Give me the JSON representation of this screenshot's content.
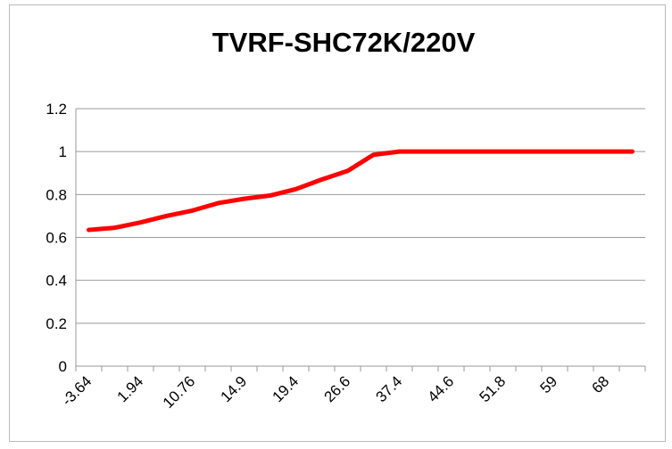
{
  "chart_data": {
    "type": "line",
    "title": "TVRF-SHC72K/220V",
    "categories": [
      "-3.64",
      null,
      "1.94",
      null,
      "10.76",
      null,
      "14.9",
      null,
      "19.4",
      null,
      "26.6",
      null,
      "37.4",
      null,
      "44.6",
      null,
      "51.8",
      null,
      "59",
      null,
      "68",
      null
    ],
    "series": [
      {
        "name": "TVRF-SHC72K/220V",
        "color": "#ff0000",
        "values": [
          0.635,
          0.645,
          0.67,
          0.7,
          0.725,
          0.76,
          0.78,
          0.795,
          0.825,
          0.87,
          0.91,
          0.985,
          1,
          1,
          1,
          1,
          1,
          1,
          1,
          1,
          1,
          1
        ]
      }
    ],
    "ylim": [
      0,
      1.2
    ],
    "yticks": [
      0,
      0.2,
      0.4,
      0.6,
      0.8,
      1,
      1.2
    ],
    "grid": true
  }
}
